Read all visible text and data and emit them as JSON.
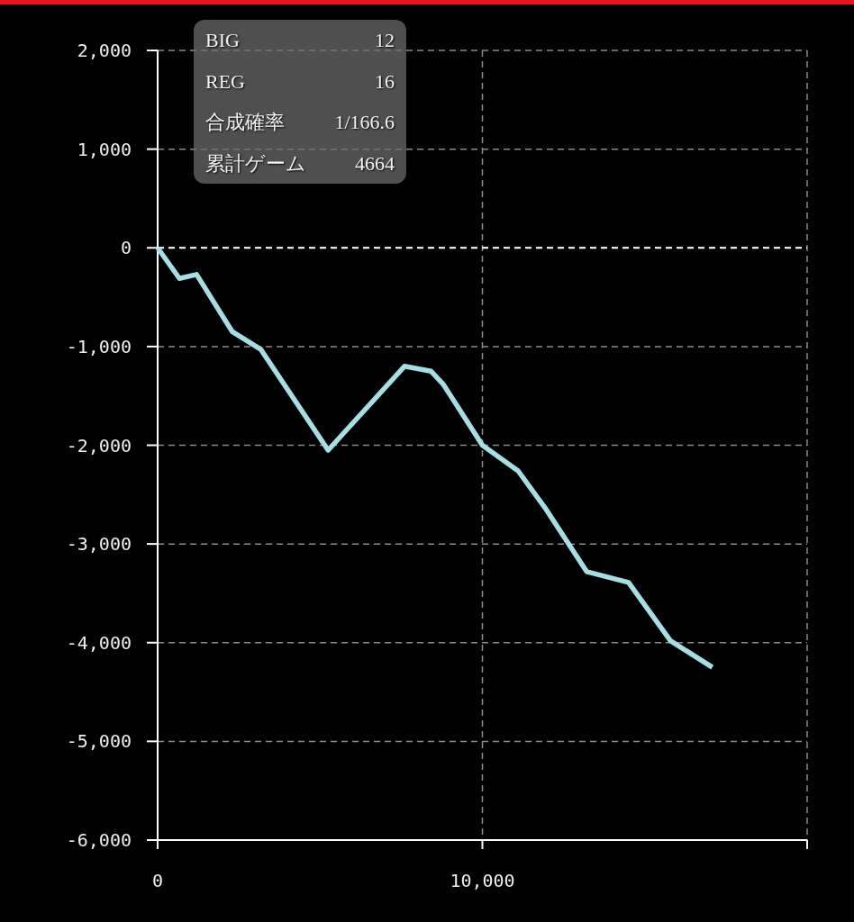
{
  "chart_data": {
    "type": "line",
    "x": [
      0,
      670,
      1200,
      2300,
      3180,
      5250,
      7600,
      8420,
      8790,
      10000,
      11100,
      11920,
      13210,
      14500,
      15790,
      17080
    ],
    "series": [
      {
        "color": "#a8dde4",
        "values": [
          0,
          -310,
          -270,
          -850,
          -1030,
          -2050,
          -1200,
          -1250,
          -1380,
          -2000,
          -2260,
          -2630,
          -3280,
          -3390,
          -3980,
          -4250
        ]
      }
    ],
    "xlim": [
      0,
      20000
    ],
    "ylim": [
      -6000,
      2000
    ],
    "xticks": [
      0,
      {
        "value": 10000,
        "label": "10,000"
      },
      {
        "value": 20000,
        "label": null
      }
    ],
    "yticks": [
      {
        "value": 2000,
        "label": "2,000"
      },
      {
        "value": 1000,
        "label": "1,000"
      },
      0,
      {
        "value": -1000,
        "label": "-1,000"
      },
      {
        "value": -2000,
        "label": "-2,000"
      },
      {
        "value": -3000,
        "label": "-3,000"
      },
      {
        "value": -4000,
        "label": "-4,000"
      },
      {
        "value": -5000,
        "label": "-5,000"
      },
      {
        "value": -6000,
        "label": "-6,000"
      }
    ],
    "grid": true,
    "ref_lines": [
      {
        "axis": "y",
        "value": 0,
        "color": "#ffffff",
        "line_style": "dashed"
      }
    ],
    "annotations": [
      "BIG",
      "12",
      "REG",
      "16",
      "合成確率",
      "1/166.6",
      "累計ゲーム",
      "4664"
    ]
  }
}
